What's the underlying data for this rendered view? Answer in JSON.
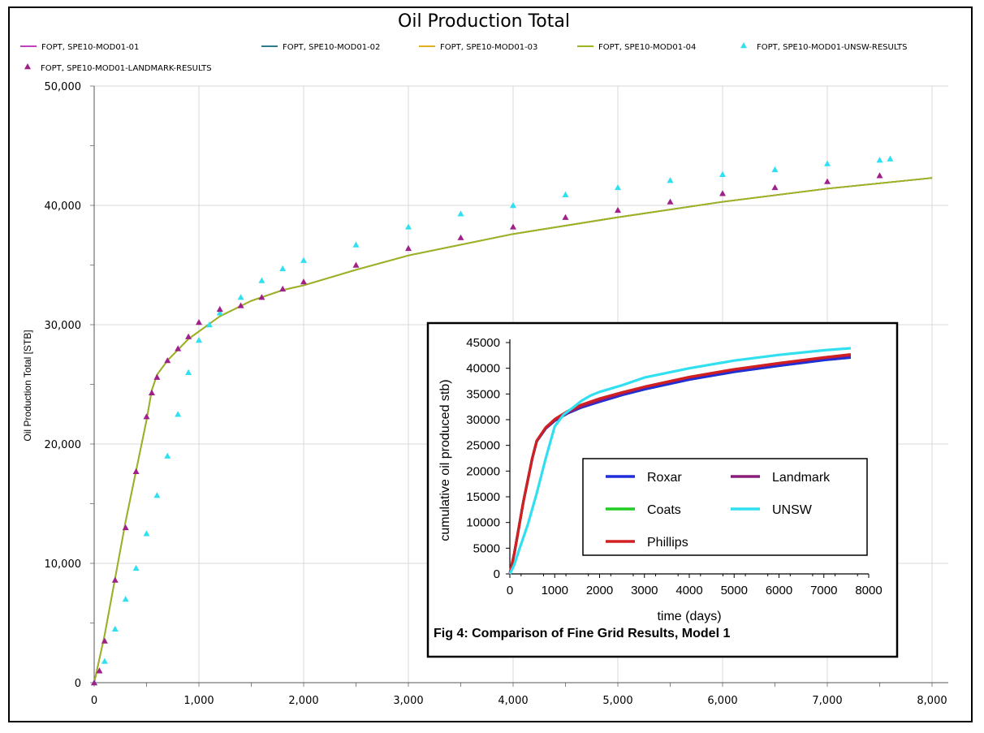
{
  "chart_data": [
    {
      "type": "line",
      "title": "Oil Production Total",
      "xlabel": "",
      "ylabel": "Oil Production Total [STB]",
      "xlim": [
        0,
        8000
      ],
      "ylim": [
        0,
        50000
      ],
      "grid": true,
      "legend_position": "top",
      "x_ticks": [
        "0",
        "1,000",
        "2,000",
        "3,000",
        "4,000",
        "5,000",
        "6,000",
        "7,000",
        "8,000"
      ],
      "y_ticks": [
        "0",
        "10,000",
        "20,000",
        "30,000",
        "40,000",
        "50,000"
      ],
      "series": [
        {
          "name": "FOPT, SPE10-MOD01-01",
          "style": "line",
          "color": "#c040c0",
          "x": [
            0,
            100,
            300,
            500,
            550,
            600,
            700,
            900,
            1200,
            1500,
            1800,
            2000,
            2500,
            3000,
            4000,
            5000,
            6000,
            7000,
            8000
          ],
          "y": [
            0,
            4000,
            13500,
            22000,
            24500,
            25800,
            27000,
            28800,
            30700,
            32000,
            32900,
            33300,
            34600,
            35800,
            37600,
            39000,
            40300,
            41400,
            42300
          ]
        },
        {
          "name": "FOPT, SPE10-MOD01-02",
          "style": "line",
          "color": "#2e7d8c",
          "x": [
            0,
            100,
            300,
            500,
            550,
            600,
            700,
            900,
            1200,
            1500,
            1800,
            2000,
            2500,
            3000,
            4000,
            5000,
            6000,
            7000,
            8000
          ],
          "y": [
            0,
            4000,
            13500,
            22000,
            24500,
            25800,
            27000,
            28800,
            30700,
            32000,
            32900,
            33300,
            34600,
            35800,
            37600,
            39000,
            40300,
            41400,
            42300
          ]
        },
        {
          "name": "FOPT, SPE10-MOD01-03",
          "style": "line",
          "color": "#e0b020",
          "x": [
            0,
            100,
            300,
            500,
            550,
            600,
            700,
            900,
            1200,
            1500,
            1800,
            2000,
            2500,
            3000,
            4000,
            5000,
            6000,
            7000,
            8000
          ],
          "y": [
            0,
            4000,
            13500,
            22000,
            24500,
            25800,
            27000,
            28800,
            30700,
            32000,
            32900,
            33300,
            34600,
            35800,
            37600,
            39000,
            40300,
            41400,
            42300
          ]
        },
        {
          "name": "FOPT, SPE10-MOD01-04",
          "style": "line",
          "color": "#9cb421",
          "x": [
            0,
            100,
            300,
            500,
            550,
            600,
            700,
            900,
            1200,
            1500,
            1800,
            2000,
            2500,
            3000,
            4000,
            5000,
            6000,
            7000,
            8000
          ],
          "y": [
            0,
            4000,
            13500,
            22000,
            24500,
            25800,
            27000,
            28800,
            30700,
            32000,
            32900,
            33300,
            34600,
            35800,
            37600,
            39000,
            40300,
            41400,
            42300
          ]
        },
        {
          "name": "FOPT, SPE10-MOD01-UNSW-RESULTS",
          "style": "triangle",
          "color": "#30e0f0",
          "x": [
            0,
            100,
            200,
            300,
            400,
            500,
            600,
            700,
            800,
            900,
            1000,
            1100,
            1200,
            1400,
            1600,
            1800,
            2000,
            2500,
            3000,
            3500,
            4000,
            4500,
            5000,
            5500,
            6000,
            6500,
            7000,
            7500,
            7600
          ],
          "y": [
            0,
            1800,
            4500,
            7000,
            9600,
            12500,
            15700,
            19000,
            22500,
            26000,
            28700,
            30000,
            31000,
            32300,
            33700,
            34700,
            35400,
            36700,
            38200,
            39300,
            40000,
            40900,
            41500,
            42100,
            42600,
            43000,
            43500,
            43800,
            43900
          ]
        },
        {
          "name": "FOPT, SPE10-MOD01-LANDMARK-RESULTS",
          "style": "triangle",
          "color": "#a0208a",
          "x": [
            0,
            50,
            100,
            200,
            300,
            400,
            500,
            550,
            600,
            700,
            800,
            900,
            1000,
            1200,
            1400,
            1600,
            1800,
            2000,
            2500,
            3000,
            3500,
            4000,
            4500,
            5000,
            5500,
            6000,
            6500,
            7000,
            7500
          ],
          "y": [
            0,
            1000,
            3500,
            8600,
            13000,
            17700,
            22300,
            24300,
            25600,
            27000,
            28000,
            29000,
            30200,
            31300,
            31600,
            32300,
            33000,
            33600,
            35000,
            36400,
            37300,
            38200,
            39000,
            39600,
            40300,
            41000,
            41500,
            42000,
            42500
          ]
        }
      ]
    },
    {
      "type": "line",
      "title": "",
      "caption": "Fig 4: Comparison of Fine Grid Results, Model 1",
      "xlabel": "time (days)",
      "ylabel": "cumulative oil produced stb)",
      "xlim": [
        0,
        8000
      ],
      "ylim": [
        0,
        45000
      ],
      "grid": false,
      "legend_position": "center-bottom",
      "x_ticks": [
        "0",
        "1000",
        "2000",
        "3000",
        "4000",
        "5000",
        "6000",
        "7000",
        "8000"
      ],
      "y_ticks": [
        "0",
        "5000",
        "10000",
        "15000",
        "20000",
        "25000",
        "30000",
        "35000",
        "40000",
        "45000"
      ],
      "series": [
        {
          "name": "Roxar",
          "color": "#1f2ed8",
          "x": [
            0,
            100,
            300,
            500,
            600,
            800,
            1000,
            1300,
            1600,
            2000,
            2500,
            3000,
            4000,
            5000,
            6000,
            7000,
            7600
          ],
          "y": [
            0,
            4000,
            14000,
            22500,
            25800,
            28300,
            29800,
            31300,
            32400,
            33500,
            34800,
            35900,
            37800,
            39300,
            40500,
            41600,
            42100
          ]
        },
        {
          "name": "Landmark",
          "color": "#8a1d7a",
          "x": [
            0,
            100,
            300,
            500,
            600,
            800,
            1000,
            1300,
            1600,
            2000,
            2500,
            3000,
            4000,
            5000,
            6000,
            7000,
            7600
          ],
          "y": [
            0,
            4000,
            14000,
            22500,
            25900,
            28400,
            29900,
            31400,
            32600,
            33800,
            35100,
            36300,
            38200,
            39700,
            40900,
            42000,
            42500
          ]
        },
        {
          "name": "Coats",
          "color": "#22cc22",
          "x": [
            0,
            100,
            300,
            500,
            600,
            800,
            1000,
            1300,
            1600,
            2000,
            2500,
            3000,
            4000,
            5000,
            6000,
            7000,
            7600
          ],
          "y": [
            0,
            4000,
            14000,
            22500,
            25800,
            28300,
            29800,
            31300,
            32400,
            33500,
            34800,
            35900,
            37800,
            39300,
            40500,
            41600,
            42100
          ]
        },
        {
          "name": "UNSW",
          "color": "#30e0f0",
          "x": [
            0,
            100,
            200,
            400,
            600,
            800,
            1000,
            1200,
            1400,
            1600,
            1800,
            2000,
            2500,
            3000,
            4000,
            5000,
            6000,
            7000,
            7600
          ],
          "y": [
            0,
            1800,
            4500,
            9600,
            15700,
            22500,
            28700,
            31000,
            32300,
            33700,
            34700,
            35400,
            36700,
            38200,
            40000,
            41500,
            42600,
            43500,
            43900
          ]
        },
        {
          "name": "Phillips",
          "color": "#d02020",
          "x": [
            0,
            100,
            300,
            500,
            600,
            800,
            1000,
            1300,
            1600,
            2000,
            2500,
            3000,
            4000,
            5000,
            6000,
            7000,
            7600
          ],
          "y": [
            0,
            4000,
            14000,
            22500,
            25900,
            28500,
            30100,
            31700,
            32900,
            34100,
            35300,
            36400,
            38300,
            39800,
            41000,
            42100,
            42700
          ]
        }
      ]
    }
  ]
}
